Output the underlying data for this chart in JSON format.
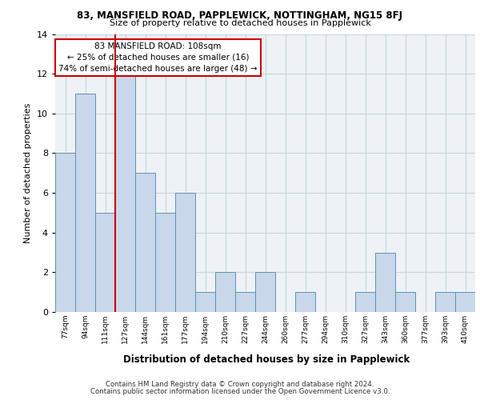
{
  "title1": "83, MANSFIELD ROAD, PAPPLEWICK, NOTTINGHAM, NG15 8FJ",
  "title2": "Size of property relative to detached houses in Papplewick",
  "xlabel": "Distribution of detached houses by size in Papplewick",
  "ylabel": "Number of detached properties",
  "categories": [
    "77sqm",
    "94sqm",
    "111sqm",
    "127sqm",
    "144sqm",
    "161sqm",
    "177sqm",
    "194sqm",
    "210sqm",
    "227sqm",
    "244sqm",
    "260sqm",
    "277sqm",
    "294sqm",
    "310sqm",
    "327sqm",
    "343sqm",
    "360sqm",
    "377sqm",
    "393sqm",
    "410sqm"
  ],
  "values": [
    8,
    11,
    5,
    12,
    7,
    5,
    6,
    1,
    2,
    1,
    2,
    0,
    1,
    0,
    0,
    1,
    3,
    1,
    0,
    1,
    1
  ],
  "bar_color": "#c8d8ea",
  "bar_edge_color": "#6090b0",
  "grid_color": "#c8d4de",
  "background_color": "#eef2f6",
  "vline_x": 2.5,
  "vline_color": "#cc0000",
  "annotation_line1": "83 MANSFIELD ROAD: 108sqm",
  "annotation_line2": "← 25% of detached houses are smaller (16)",
  "annotation_line3": "74% of semi-detached houses are larger (48) →",
  "annotation_box_color": "#ffffff",
  "annotation_box_edge": "#cc0000",
  "footer1": "Contains HM Land Registry data © Crown copyright and database right 2024.",
  "footer2": "Contains public sector information licensed under the Open Government Licence v3.0.",
  "ylim": [
    0,
    14
  ],
  "yticks": [
    0,
    2,
    4,
    6,
    8,
    10,
    12,
    14
  ]
}
